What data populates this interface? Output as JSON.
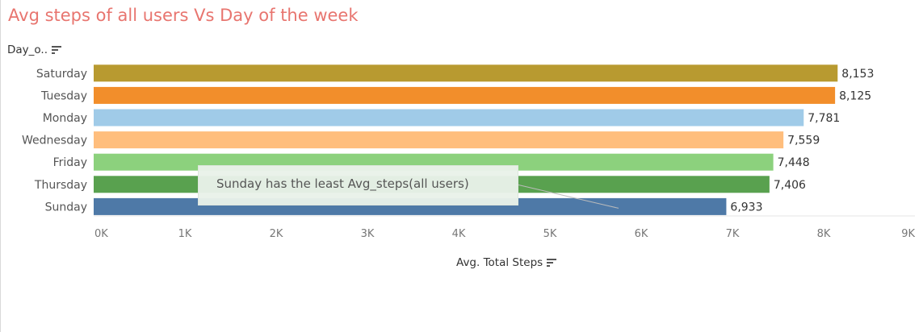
{
  "title": "Avg steps of all users Vs Day of the week",
  "dimension_header": "Day_o..",
  "axis_title": "Avg. Total Steps",
  "annotation": "Sunday has the least Avg_steps(all users)",
  "icons": {
    "sort": "sort-icon"
  },
  "chart_data": {
    "type": "bar",
    "orientation": "horizontal",
    "title": "Avg steps of all users Vs Day of the week",
    "xlabel": "Avg. Total Steps",
    "ylabel": "Day_o..",
    "xlim": [
      0,
      9000
    ],
    "grid": false,
    "x_ticks": [
      "0K",
      "1K",
      "2K",
      "3K",
      "4K",
      "5K",
      "6K",
      "7K",
      "8K",
      "9K"
    ],
    "categories": [
      "Saturday",
      "Tuesday",
      "Monday",
      "Wednesday",
      "Friday",
      "Thursday",
      "Sunday"
    ],
    "values": [
      8153,
      8125,
      7781,
      7559,
      7448,
      7406,
      6933
    ],
    "value_labels": [
      "8,153",
      "8,125",
      "7,781",
      "7,559",
      "7,448",
      "7,406",
      "6,933"
    ],
    "colors": [
      "#b89a30",
      "#f28e2b",
      "#a0cbe8",
      "#ffbe7d",
      "#8cd17d",
      "#59a14f",
      "#4e79a7"
    ],
    "annotation": {
      "text": "Sunday has the least Avg_steps(all users)",
      "target_category": "Sunday"
    }
  }
}
